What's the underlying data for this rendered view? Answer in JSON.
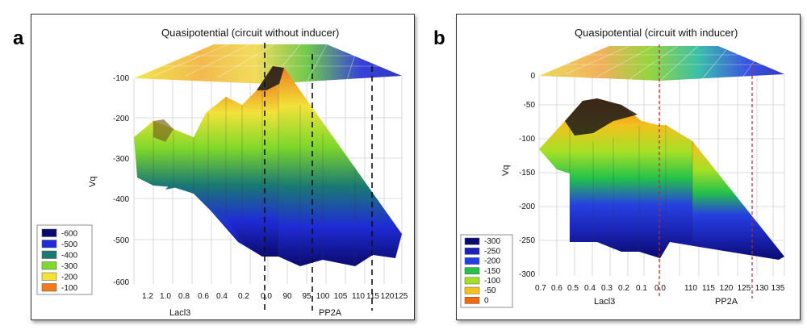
{
  "panels": [
    {
      "letter": "a",
      "chart_data": {
        "type": "surface3d",
        "title": "Quasipotential (circuit without inducer)",
        "zlabel": "Vq",
        "xlabel_left": "Lacl3",
        "xlabel_right": "PP2A",
        "z_ticks": [
          "-100",
          "-200",
          "-300",
          "-400",
          "-500",
          "-600"
        ],
        "left_ticks": [
          "1.2",
          "1.0",
          "0.8",
          "0.6",
          "0.4",
          "0.2",
          "0.0"
        ],
        "right_ticks": [
          "90",
          "95",
          "100",
          "105",
          "110",
          "115",
          "120",
          "125"
        ],
        "legend": [
          {
            "label": "-600",
            "color": "#0a0a6e"
          },
          {
            "label": "-500",
            "color": "#1f2bd6"
          },
          {
            "label": "-400",
            "color": "#1a7a72"
          },
          {
            "label": "-300",
            "color": "#7fd82a"
          },
          {
            "label": "-200",
            "color": "#f2e23a"
          },
          {
            "label": "-100",
            "color": "#f07a1e"
          }
        ],
        "legend_placement": "bottom-left",
        "colorscale": [
          "#0a0a6e",
          "#1f2bd6",
          "#1a7a72",
          "#7fd82a",
          "#f2e23a",
          "#f07a1e"
        ]
      }
    },
    {
      "letter": "b",
      "chart_data": {
        "type": "surface3d",
        "title": "Quasipotential (circuit with inducer)",
        "zlabel": "Vq",
        "xlabel_left": "Lacl3",
        "xlabel_right": "PP2A",
        "z_ticks": [
          "0",
          "-50",
          "-100",
          "-150",
          "-200",
          "-250",
          "-300"
        ],
        "left_ticks": [
          "0.7",
          "0.6",
          "0.5",
          "0.4",
          "0.3",
          "0.2",
          "0.1",
          "0.0"
        ],
        "right_ticks": [
          "110",
          "115",
          "120",
          "125",
          "130",
          "135"
        ],
        "legend": [
          {
            "label": "-300",
            "color": "#0a0a6e"
          },
          {
            "label": "-250",
            "color": "#1a23b4"
          },
          {
            "label": "-200",
            "color": "#2540e0"
          },
          {
            "label": "-150",
            "color": "#25c24a"
          },
          {
            "label": "-100",
            "color": "#a6e026"
          },
          {
            "label": "-50",
            "color": "#f2c21e"
          },
          {
            "label": "0",
            "color": "#f06a10"
          }
        ],
        "legend_placement": "bottom-left",
        "colorscale": [
          "#0a0a6e",
          "#1a23b4",
          "#2540e0",
          "#25c24a",
          "#a6e026",
          "#f2c21e",
          "#f06a10"
        ]
      }
    }
  ]
}
